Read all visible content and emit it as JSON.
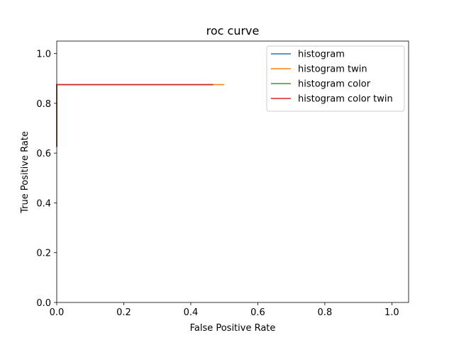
{
  "chart_data": {
    "type": "line",
    "title": "roc curve",
    "xlabel": "False Positive Rate",
    "ylabel": "True Positive Rate",
    "xlim": [
      0.0,
      1.05
    ],
    "ylim": [
      0.0,
      1.05
    ],
    "xticks": [
      0.0,
      0.2,
      0.4,
      0.6,
      0.8,
      1.0
    ],
    "yticks": [
      0.0,
      0.2,
      0.4,
      0.6,
      0.8,
      1.0
    ],
    "xtick_labels": [
      "0.0",
      "0.2",
      "0.4",
      "0.6",
      "0.8",
      "1.0"
    ],
    "ytick_labels": [
      "0.0",
      "0.2",
      "0.4",
      "0.6",
      "0.8",
      "1.0"
    ],
    "grid": false,
    "legend_position": "top-right",
    "series": [
      {
        "name": "histogram",
        "color": "#1f77b4",
        "x": [
          0.0,
          0.0,
          0.0,
          0.467
        ],
        "y": [
          0.625,
          0.75,
          0.875,
          0.875
        ]
      },
      {
        "name": "histogram twin",
        "color": "#ff7f0e",
        "x": [
          0.0,
          0.0,
          0.0,
          0.5
        ],
        "y": [
          0.625,
          0.75,
          0.875,
          0.875
        ]
      },
      {
        "name": "histogram color",
        "color": "#2ca02c",
        "x": [
          0.0,
          0.0,
          0.0,
          0.467
        ],
        "y": [
          0.625,
          0.75,
          0.875,
          0.875
        ]
      },
      {
        "name": "histogram color twin",
        "color": "#d62728",
        "x": [
          0.0,
          0.0,
          0.0,
          0.467
        ],
        "y": [
          0.625,
          0.75,
          0.875,
          0.875
        ]
      }
    ]
  }
}
